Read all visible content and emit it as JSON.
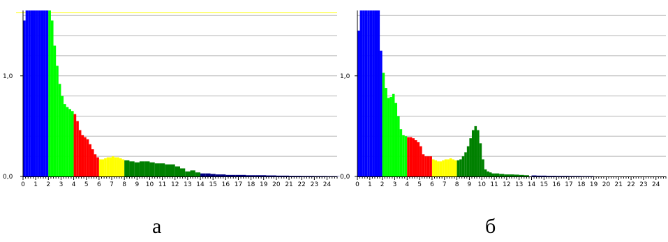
{
  "chart_data": [
    {
      "type": "bar",
      "xlabel": "",
      "ylabel": "",
      "xlim": [
        0,
        24.8
      ],
      "ylim": [
        0,
        1.65
      ],
      "y_ticks": [
        "0,0",
        "1,0"
      ],
      "x_ticks": [
        "0",
        "1",
        "2",
        "3",
        "4",
        "5",
        "6",
        "7",
        "8",
        "9",
        "10",
        "11",
        "12",
        "13",
        "14",
        "15",
        "16",
        "17",
        "18",
        "19",
        "20",
        "21",
        "22",
        "23",
        "24"
      ],
      "grid": true,
      "reference_line": {
        "y": 1.63,
        "color": "#ffff00"
      },
      "caption": "а",
      "series": [
        {
          "color": "#0000ff",
          "x": [
            0.0,
            0.2,
            0.4,
            0.6,
            0.8,
            1.0,
            1.2,
            1.4,
            1.6,
            1.8
          ],
          "values": [
            1.55,
            1.65,
            1.65,
            1.65,
            1.65,
            1.65,
            1.65,
            1.65,
            1.65,
            1.65
          ]
        },
        {
          "color": "#00ff00",
          "x": [
            2.0,
            2.2,
            2.4,
            2.6,
            2.8,
            3.0,
            3.2,
            3.4,
            3.6,
            3.8
          ],
          "values": [
            1.65,
            1.55,
            1.3,
            1.1,
            0.92,
            0.8,
            0.72,
            0.69,
            0.67,
            0.65
          ]
        },
        {
          "color": "#ff0000",
          "x": [
            4.0,
            4.2,
            4.4,
            4.6,
            4.8,
            5.0,
            5.2,
            5.4,
            5.6,
            5.8
          ],
          "values": [
            0.62,
            0.55,
            0.46,
            0.41,
            0.39,
            0.37,
            0.32,
            0.27,
            0.22,
            0.19
          ]
        },
        {
          "color": "#ffff00",
          "x": [
            6.0,
            6.2,
            6.4,
            6.6,
            6.8,
            7.0,
            7.2,
            7.4,
            7.6,
            7.8
          ],
          "values": [
            0.17,
            0.17,
            0.18,
            0.19,
            0.19,
            0.2,
            0.19,
            0.19,
            0.18,
            0.17
          ]
        },
        {
          "color": "#008000",
          "x": [
            8.0,
            8.4,
            8.8,
            9.2,
            9.6,
            10.0,
            10.4,
            10.8,
            11.2,
            11.6,
            12.0,
            12.4,
            12.8,
            13.2,
            13.6
          ],
          "values": [
            0.16,
            0.15,
            0.14,
            0.15,
            0.15,
            0.14,
            0.13,
            0.13,
            0.12,
            0.12,
            0.1,
            0.08,
            0.05,
            0.06,
            0.04
          ]
        },
        {
          "color": "#000080",
          "x": [
            14.0,
            14.4,
            14.8,
            15.2,
            15.6,
            16.0,
            16.8,
            17.6,
            18.4,
            19.2,
            20.0,
            21.0,
            22.0,
            23.0,
            24.0
          ],
          "values": [
            0.03,
            0.03,
            0.025,
            0.02,
            0.02,
            0.015,
            0.015,
            0.012,
            0.012,
            0.01,
            0.008,
            0.006,
            0.005,
            0.004,
            0.003
          ]
        }
      ]
    },
    {
      "type": "bar",
      "xlabel": "",
      "ylabel": "",
      "xlim": [
        0,
        24.8
      ],
      "ylim": [
        0,
        1.65
      ],
      "y_ticks": [
        "0,0",
        "1,0"
      ],
      "x_ticks": [
        "0",
        "1",
        "2",
        "3",
        "4",
        "5",
        "6",
        "7",
        "8",
        "9",
        "10",
        "11",
        "12",
        "13",
        "14",
        "15",
        "16",
        "17",
        "18",
        "19",
        "20",
        "21",
        "22",
        "23",
        "24"
      ],
      "grid": true,
      "caption": "б",
      "series": [
        {
          "color": "#0000ff",
          "x": [
            0.0,
            0.2,
            0.4,
            0.6,
            0.8,
            1.0,
            1.2,
            1.4,
            1.6,
            1.8
          ],
          "values": [
            1.45,
            1.65,
            1.65,
            1.65,
            1.65,
            1.65,
            1.65,
            1.65,
            1.65,
            1.25
          ]
        },
        {
          "color": "#00ff00",
          "x": [
            2.0,
            2.2,
            2.4,
            2.6,
            2.8,
            3.0,
            3.2,
            3.4,
            3.6,
            3.8
          ],
          "values": [
            1.03,
            0.88,
            0.78,
            0.79,
            0.82,
            0.73,
            0.6,
            0.47,
            0.41,
            0.4
          ]
        },
        {
          "color": "#ff0000",
          "x": [
            4.0,
            4.2,
            4.4,
            4.6,
            4.8,
            5.0,
            5.2,
            5.4,
            5.6,
            5.8
          ],
          "values": [
            0.39,
            0.39,
            0.38,
            0.36,
            0.34,
            0.3,
            0.22,
            0.2,
            0.2,
            0.2
          ]
        },
        {
          "color": "#ffff00",
          "x": [
            6.0,
            6.2,
            6.4,
            6.6,
            6.8,
            7.0,
            7.2,
            7.4,
            7.6,
            7.8
          ],
          "values": [
            0.17,
            0.16,
            0.15,
            0.15,
            0.16,
            0.17,
            0.17,
            0.18,
            0.17,
            0.16
          ]
        },
        {
          "color": "#008000",
          "x": [
            8.0,
            8.2,
            8.4,
            8.6,
            8.8,
            9.0,
            9.2,
            9.4,
            9.6,
            9.8,
            10.0,
            10.2,
            10.4,
            10.6,
            10.8
          ],
          "values": [
            0.16,
            0.17,
            0.2,
            0.24,
            0.3,
            0.38,
            0.46,
            0.5,
            0.46,
            0.33,
            0.17,
            0.07,
            0.05,
            0.04,
            0.03
          ]
        },
        {
          "color": "#008000",
          "x": [
            11.0,
            11.4,
            11.8,
            12.2,
            12.6,
            13.0,
            13.4
          ],
          "values": [
            0.03,
            0.025,
            0.02,
            0.02,
            0.018,
            0.015,
            0.012
          ]
        },
        {
          "color": "#000080",
          "x": [
            14.0,
            14.4,
            14.8,
            15.2,
            16.0,
            17.0,
            18.0
          ],
          "values": [
            0.01,
            0.008,
            0.008,
            0.006,
            0.005,
            0.004,
            0.003
          ]
        }
      ]
    }
  ]
}
